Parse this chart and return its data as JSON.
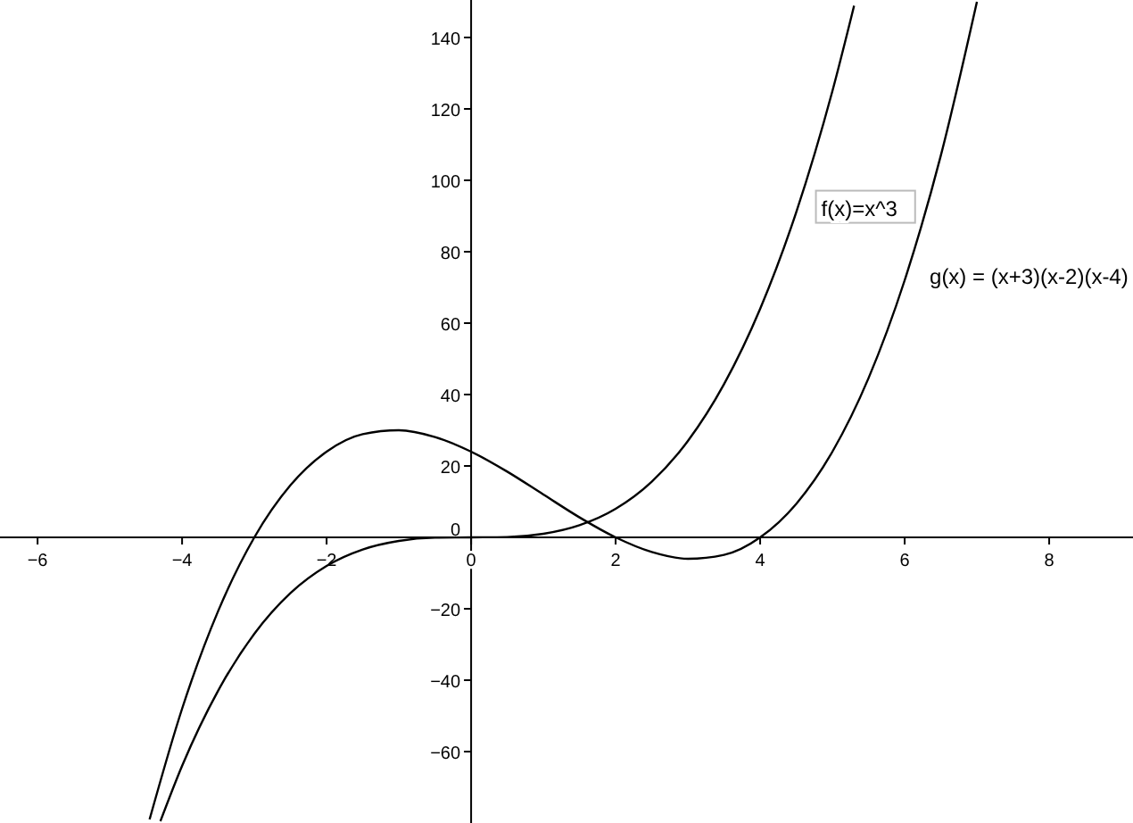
{
  "chart_data": {
    "type": "line",
    "xlim": [
      -6.52,
      9.16
    ],
    "ylim": [
      -80,
      150.5
    ],
    "xticks": [
      -6,
      -4,
      -2,
      0,
      2,
      4,
      6,
      8
    ],
    "yticks": [
      -60,
      -40,
      -20,
      0,
      20,
      40,
      60,
      80,
      100,
      120,
      140
    ],
    "grid": false,
    "legend": false,
    "marker": "none",
    "line_style": "solid",
    "series": [
      {
        "name": "f(x)=x^3",
        "color": "#000000",
        "x": [
          -4.3,
          -4,
          -3.5,
          -3,
          -2.5,
          -2,
          -1.5,
          -1,
          -0.5,
          0,
          0.5,
          1,
          1.5,
          2,
          2.5,
          3,
          3.5,
          4,
          4.5,
          5,
          5.3
        ],
        "values": [
          -79.5,
          -64,
          -42.9,
          -27,
          -15.6,
          -8,
          -3.4,
          -1,
          -0.1,
          0,
          0.1,
          1,
          3.4,
          8,
          15.6,
          27,
          42.9,
          64,
          91.1,
          125,
          148.9
        ]
      },
      {
        "name": "g(x) = (x+3)(x-2)(x-4)",
        "color": "#000000",
        "x": [
          -4.45,
          -4,
          -3.5,
          -3,
          -2.5,
          -2,
          -1.5,
          -1,
          -0.5,
          0,
          0.5,
          1,
          1.5,
          2,
          2.5,
          3,
          3.5,
          4,
          4.5,
          5,
          5.5,
          6,
          6.5,
          7
        ],
        "values": [
          -79,
          -48,
          -20.6,
          0,
          14.6,
          24,
          28.9,
          30,
          28.1,
          24,
          18.4,
          12,
          5.6,
          0,
          -4.1,
          -6,
          -4.9,
          0,
          9.4,
          24,
          44.6,
          72,
          106.9,
          150
        ]
      }
    ]
  }
}
